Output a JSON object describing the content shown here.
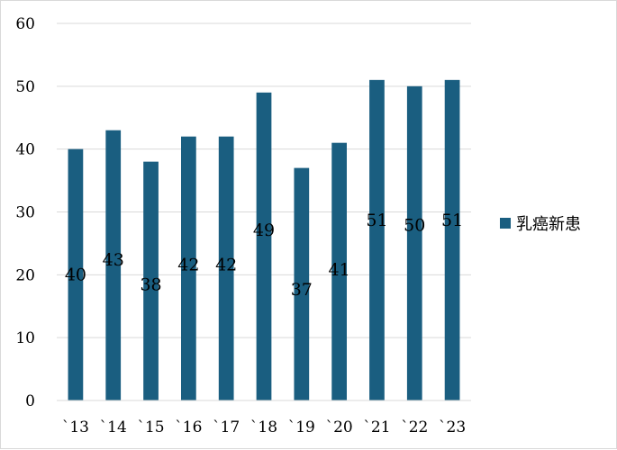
{
  "chart_data": {
    "type": "bar",
    "categories": [
      "`13",
      "`14",
      "`15",
      "`16",
      "`17",
      "`18",
      "`19",
      "`20",
      "`21",
      "`22",
      "`23"
    ],
    "series": [
      {
        "name": "乳癌新患",
        "values": [
          40,
          43,
          38,
          42,
          42,
          49,
          37,
          41,
          51,
          50,
          51
        ],
        "color": "#1a5e80"
      }
    ],
    "title": "",
    "xlabel": "",
    "ylabel": "",
    "ylim": [
      0,
      60
    ],
    "yticks": [
      0,
      10,
      20,
      30,
      40,
      50,
      60
    ],
    "grid": true,
    "gridColor": "#d9d9d9",
    "legend_position": "right",
    "data_labels": true
  }
}
